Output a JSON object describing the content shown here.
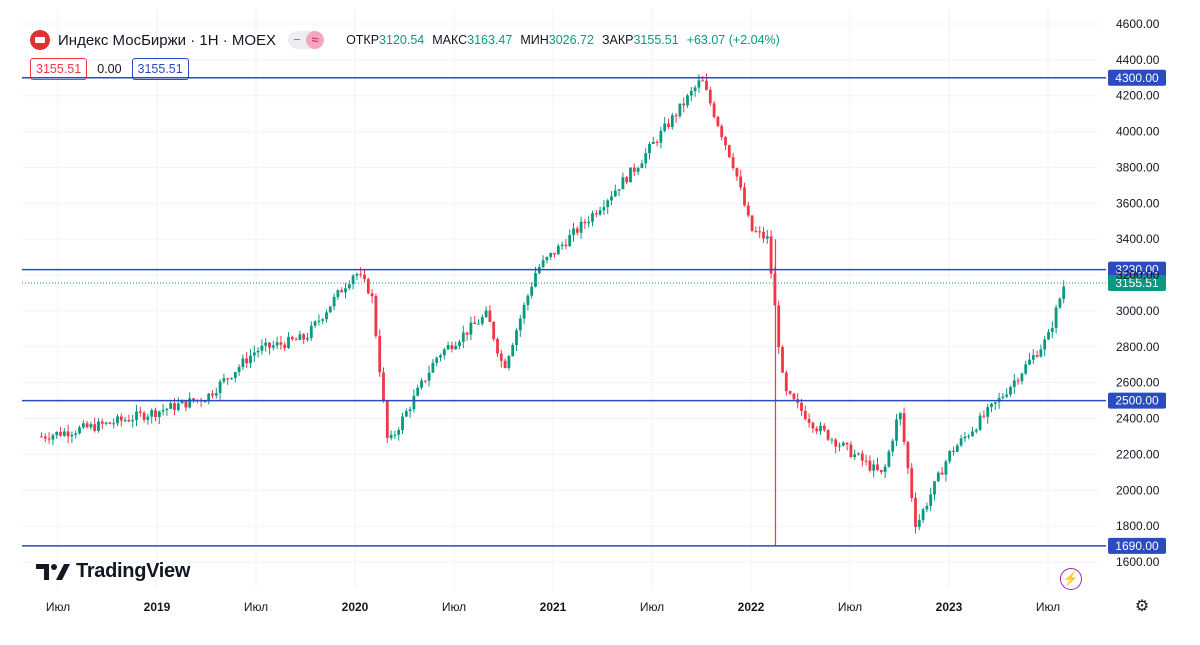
{
  "header": {
    "symbol_title": "Индекс МосБиржи · 1Н · MOEX",
    "ohlc": {
      "open_label": "ОТКР",
      "open_value": "3120.54",
      "high_label": "МАКС",
      "high_value": "3163.47",
      "low_label": "МИН",
      "low_value": "3026.72",
      "close_label": "ЗАКР",
      "close_value": "3155.51",
      "change_value": "+63.07 (+2.04%)"
    },
    "price_box_sell": "3155.51",
    "price_box_spread": "0.00",
    "price_box_buy": "3155.51"
  },
  "branding": {
    "logo_text": "TradingView"
  },
  "colors": {
    "up": "#089981",
    "down": "#f23645",
    "level_line": "#2a4cc0",
    "last_price": "#089981",
    "grid": "#f0f3fa"
  },
  "icons": [
    "chart-logo-icon",
    "minus-icon",
    "approx-icon",
    "flash-icon",
    "gear-icon",
    "tradingview-logo-icon"
  ],
  "chart_data": {
    "type": "candlestick",
    "timeframe": "1Н",
    "title": "Индекс МосБиржи · 1Н · MOEX",
    "x_ticks": [
      "Июл",
      "2019",
      "Июл",
      "2020",
      "Июл",
      "2021",
      "Июл",
      "2022",
      "Июл",
      "2023",
      "Июл"
    ],
    "y_ticks": [
      "4600.00",
      "4400.00",
      "4200.00",
      "4000.00",
      "3800.00",
      "3600.00",
      "3400.00",
      "3200.00",
      "3000.00",
      "2800.00",
      "2600.00",
      "2400.00",
      "2200.00",
      "2000.00",
      "1800.00",
      "1600.00"
    ],
    "ylim": [
      1600,
      4600
    ],
    "date_range": [
      "2018-06",
      "2023-08"
    ],
    "horizontal_levels": [
      {
        "value": 4300,
        "label": "4300.00"
      },
      {
        "value": 3230,
        "label": "3230.00"
      },
      {
        "value": 2500,
        "label": "2500.00"
      },
      {
        "value": 1690,
        "label": "1690.00"
      }
    ],
    "last_price": {
      "value": 3155.51,
      "label": "3155.51"
    },
    "close_path": [
      [
        "2018-06",
        2300
      ],
      [
        "2018-10",
        2370
      ],
      [
        "2019-01",
        2440
      ],
      [
        "2019-04",
        2520
      ],
      [
        "2019-07",
        2780
      ],
      [
        "2019-10",
        2850
      ],
      [
        "2020-01",
        3220
      ],
      [
        "2020-02",
        3100
      ],
      [
        "2020-03",
        2250
      ],
      [
        "2020-06",
        2750
      ],
      [
        "2020-09",
        2980
      ],
      [
        "2020-10",
        2680
      ],
      [
        "2020-12",
        3230
      ],
      [
        "2021-03",
        3500
      ],
      [
        "2021-06",
        3800
      ],
      [
        "2021-10",
        4290
      ],
      [
        "2021-12",
        3800
      ],
      [
        "2022-01",
        3450
      ],
      [
        "2022-02",
        3400
      ],
      [
        "2022-03",
        2550
      ],
      [
        "2022-05",
        2350
      ],
      [
        "2022-09",
        2080
      ],
      [
        "2022-10",
        2450
      ],
      [
        "2022-11",
        1800
      ],
      [
        "2023-01",
        2200
      ],
      [
        "2023-04",
        2500
      ],
      [
        "2023-07",
        2850
      ],
      [
        "2023-08",
        3155
      ]
    ]
  }
}
